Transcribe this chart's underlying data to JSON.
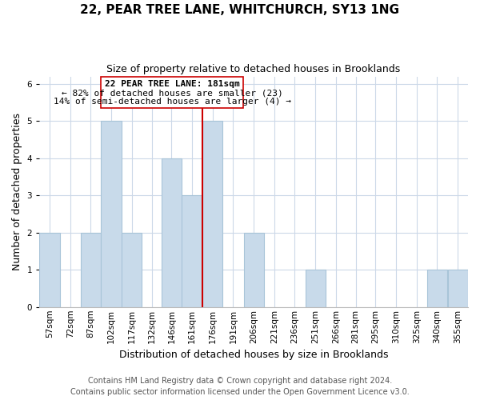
{
  "title": "22, PEAR TREE LANE, WHITCHURCH, SY13 1NG",
  "subtitle": "Size of property relative to detached houses in Brooklands",
  "xlabel": "Distribution of detached houses by size in Brooklands",
  "ylabel": "Number of detached properties",
  "footer_line1": "Contains HM Land Registry data © Crown copyright and database right 2024.",
  "footer_line2": "Contains public sector information licensed under the Open Government Licence v3.0.",
  "bin_labels": [
    "57sqm",
    "72sqm",
    "87sqm",
    "102sqm",
    "117sqm",
    "132sqm",
    "146sqm",
    "161sqm",
    "176sqm",
    "191sqm",
    "206sqm",
    "221sqm",
    "236sqm",
    "251sqm",
    "266sqm",
    "281sqm",
    "295sqm",
    "310sqm",
    "325sqm",
    "340sqm",
    "355sqm"
  ],
  "bar_heights": [
    2,
    0,
    2,
    5,
    2,
    0,
    4,
    3,
    5,
    0,
    2,
    0,
    0,
    1,
    0,
    0,
    0,
    0,
    0,
    1,
    1
  ],
  "n_bins": 21,
  "bin_edges": [
    57,
    72,
    87,
    102,
    117,
    132,
    146,
    161,
    176,
    191,
    206,
    221,
    236,
    251,
    266,
    281,
    295,
    310,
    325,
    340,
    355,
    370
  ],
  "bar_color": "#c8daea",
  "bar_edgecolor": "#a8c4d8",
  "reference_line_x": 176,
  "reference_line_color": "#cc0000",
  "annotation_title": "22 PEAR TREE LANE: 181sqm",
  "annotation_line1": "← 82% of detached houses are smaller (23)",
  "annotation_line2": "14% of semi-detached houses are larger (4) →",
  "annotation_box_edgecolor": "#cc0000",
  "annotation_box_facecolor": "#ffffff",
  "ylim": [
    0,
    6.2
  ],
  "yticks": [
    0,
    1,
    2,
    3,
    4,
    5,
    6
  ],
  "background_color": "#ffffff",
  "grid_color": "#ccd8e8",
  "title_fontsize": 11,
  "subtitle_fontsize": 9,
  "axis_label_fontsize": 9,
  "tick_fontsize": 7.5,
  "annotation_fontsize": 8,
  "footer_fontsize": 7
}
